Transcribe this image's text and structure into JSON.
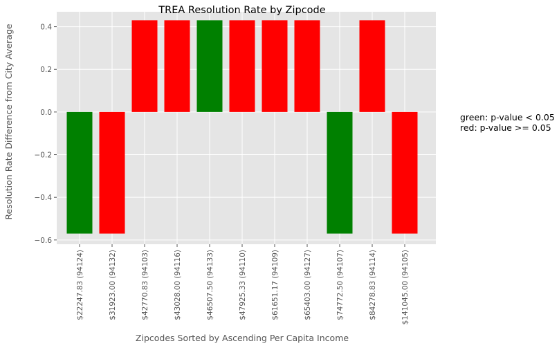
{
  "chart_data": {
    "type": "bar",
    "title": "TREA Resolution Rate by Zipcode",
    "xlabel": "Zipcodes Sorted by Ascending Per Capita Income",
    "ylabel": "Resolution Rate Difference from City Average",
    "categories": [
      "$22247.83  (94124)",
      "$31923.00  (94132)",
      "$42770.83  (94103)",
      "$43028.00  (94116)",
      "$46507.50  (94133)",
      "$47925.33  (94110)",
      "$61651.17  (94109)",
      "$65403.00  (94127)",
      "$74772.50  (94107)",
      "$84278.83  (94114)",
      "$141045.00  (94105)"
    ],
    "values": [
      -0.57,
      -0.57,
      0.43,
      0.43,
      0.43,
      0.43,
      0.43,
      0.43,
      -0.57,
      0.43,
      -0.57
    ],
    "bar_colors": [
      "#008000",
      "#ff0000",
      "#ff0000",
      "#ff0000",
      "#008000",
      "#ff0000",
      "#ff0000",
      "#ff0000",
      "#008000",
      "#ff0000",
      "#ff0000"
    ],
    "ylim": [
      -0.62,
      0.47
    ],
    "yticks": [
      -0.6,
      -0.4,
      -0.2,
      0.0,
      0.2,
      0.4
    ],
    "ytick_labels": [
      "−0.6",
      "−0.4",
      "−0.2",
      "0.0",
      "0.2",
      "0.4"
    ],
    "grid": true,
    "background": "#e5e5e5",
    "annotations": [
      "green: p-value < 0.05",
      "red: p-value >= 0.05"
    ]
  }
}
